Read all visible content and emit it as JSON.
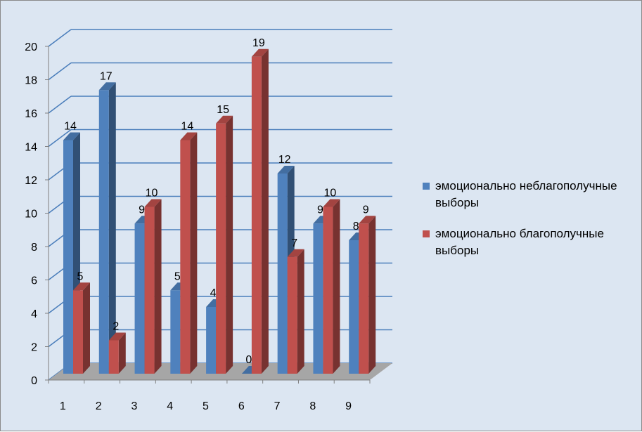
{
  "chart_data": {
    "type": "bar",
    "categories": [
      "1",
      "2",
      "3",
      "4",
      "5",
      "6",
      "7",
      "8",
      "9"
    ],
    "series": [
      {
        "name": "эмоционально неблагополучные выборы",
        "values": [
          14,
          17,
          9,
          5,
          4,
          0,
          12,
          9,
          8
        ],
        "color": "#4f81bd"
      },
      {
        "name": "эмоционально благополучные выборы",
        "values": [
          5,
          2,
          10,
          14,
          15,
          19,
          7,
          10,
          9
        ],
        "color": "#c0504d"
      }
    ],
    "yticks": [
      "0",
      "2",
      "4",
      "6",
      "8",
      "10",
      "12",
      "14",
      "16",
      "18",
      "20"
    ],
    "ylim": [
      0,
      20
    ],
    "grid": true,
    "legend_position": "right",
    "title": "",
    "xlabel": "",
    "ylabel": ""
  }
}
